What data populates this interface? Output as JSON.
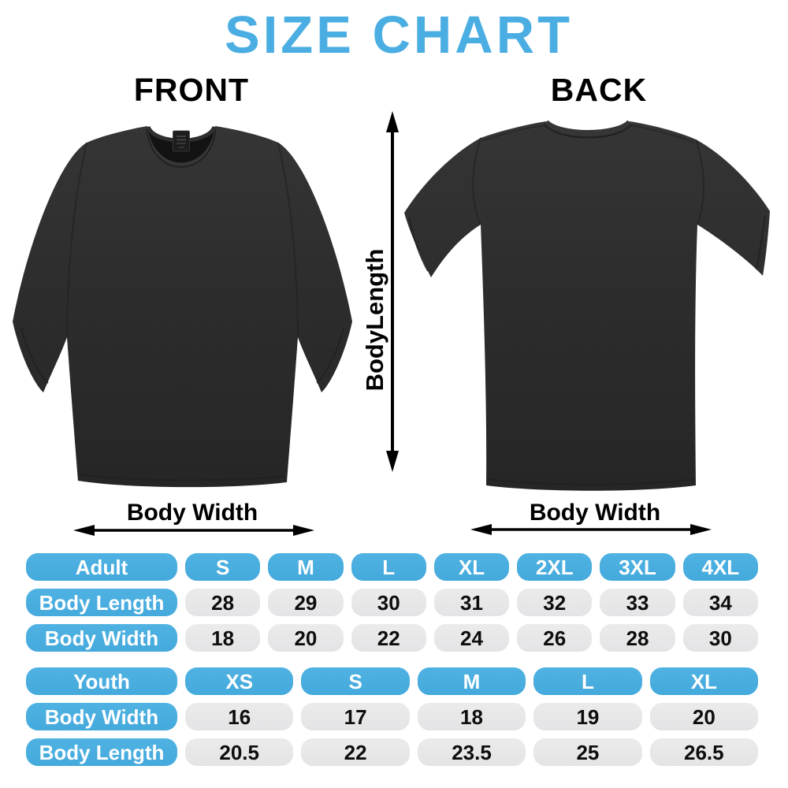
{
  "title": "SIZE CHART",
  "front_label": "FRONT",
  "back_label": "BACK",
  "measurements": {
    "body_length_label": "BodyLength",
    "front_body_width_label": "Body Width",
    "back_body_width_label": "Body Width"
  },
  "colors": {
    "title_blue": "#4BAEE3",
    "pill_blue": "#44A9DC",
    "pill_blue_highlight": "#4FB2E2",
    "pill_gray": "#E4E4E6",
    "arrow_black": "#000000",
    "shirt_gradient_top": "#353535",
    "shirt_gradient_bottom": "#262626"
  },
  "chart_data": [
    {
      "type": "table",
      "title": "Adult",
      "columns": [
        "Adult",
        "S",
        "M",
        "L",
        "XL",
        "2XL",
        "3XL",
        "4XL"
      ],
      "rows": [
        [
          "Body Length",
          "28",
          "29",
          "30",
          "31",
          "32",
          "33",
          "34"
        ],
        [
          "Body Width",
          "18",
          "20",
          "22",
          "24",
          "26",
          "28",
          "30"
        ]
      ]
    },
    {
      "type": "table",
      "title": "Youth",
      "columns": [
        "Youth",
        "XS",
        "S",
        "M",
        "L",
        "XL"
      ],
      "rows": [
        [
          "Body Width",
          "16",
          "17",
          "18",
          "19",
          "20"
        ],
        [
          "Body Length",
          "20.5",
          "22",
          "23.5",
          "25",
          "26.5"
        ]
      ]
    }
  ]
}
